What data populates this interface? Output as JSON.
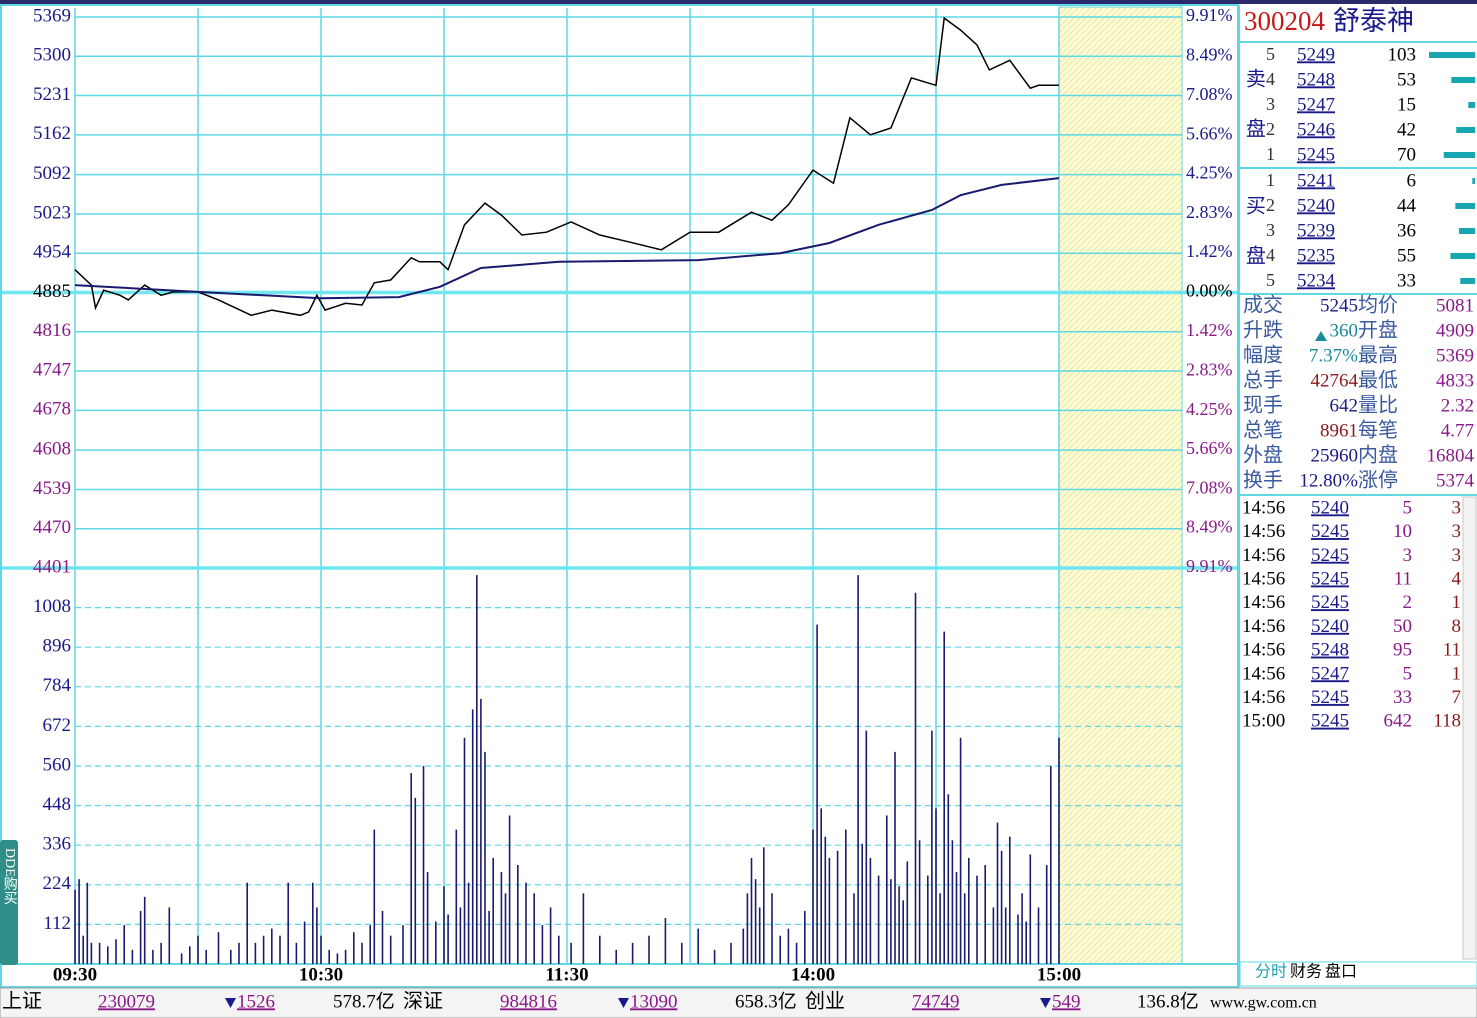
{
  "chart_data": [
    {
      "type": "line",
      "series": [
        {
          "color": "#000000",
          "x": [
            0,
            4,
            5,
            7,
            11,
            13,
            17,
            21,
            24,
            30,
            35,
            43,
            48,
            55,
            57,
            59,
            61,
            66,
            70,
            73,
            77,
            82,
            84,
            89,
            91,
            95,
            100,
            104,
            109,
            115,
            121,
            128,
            135,
            143,
            150,
            157,
            165,
            170,
            174,
            180,
            185,
            189,
            194,
            199,
            204,
            210,
            212,
            216,
            220,
            223,
            228,
            233,
            235,
            240
          ],
          "values": [
            4925,
            4898,
            4858,
            4889,
            4880,
            4872,
            4898,
            4880,
            4886,
            4886,
            4872,
            4845,
            4854,
            4845,
            4851,
            4880,
            4854,
            4866,
            4863,
            4902,
            4907,
            4946,
            4939,
            4939,
            4925,
            5004,
            5042,
            5021,
            4986,
            4991,
            5009,
            4986,
            4974,
            4960,
            4991,
            4991,
            5026,
            5012,
            5039,
            5100,
            5077,
            5192,
            5162,
            5174,
            5262,
            5249,
            5367,
            5346,
            5320,
            5276,
            5293,
            5244,
            5249,
            5249
          ]
        },
        {
          "color": "#1a1a6e",
          "x": [
            0,
            30,
            60,
            79,
            89,
            99,
            118,
            152,
            172,
            184,
            196,
            209,
            216,
            226,
            240
          ],
          "values": [
            4898,
            4886,
            4875,
            4877,
            4895,
            4928,
            4939,
            4942,
            4954,
            4972,
            5004,
            5030,
            5056,
            5074,
            5086
          ]
        }
      ],
      "ylim": [
        4401,
        5369
      ],
      "yticks": [
        5369,
        5300,
        5231,
        5162,
        5092,
        5023,
        4954,
        4885,
        4816,
        4747,
        4678,
        4608,
        4539,
        4470,
        4401
      ],
      "y2lim": [
        -9.91,
        9.91
      ],
      "y2ticks": [
        {
          "value": 9.91,
          "label": "9.91%"
        },
        {
          "value": 8.49,
          "label": "8.49%"
        },
        {
          "value": 7.08,
          "label": "7.08%"
        },
        {
          "value": 5.66,
          "label": "5.66%"
        },
        {
          "value": 4.25,
          "label": "4.25%"
        },
        {
          "value": 2.83,
          "label": "2.83%"
        },
        {
          "value": 1.42,
          "label": "1.42%"
        },
        {
          "value": 0,
          "label": "0.00%"
        },
        {
          "value": -1.42,
          "label": "1.42%"
        },
        {
          "value": -2.83,
          "label": "2.83%"
        },
        {
          "value": -4.25,
          "label": "4.25%"
        },
        {
          "value": -5.66,
          "label": "5.66%"
        },
        {
          "value": -7.08,
          "label": "7.08%"
        },
        {
          "value": -8.49,
          "label": "8.49%"
        },
        {
          "value": -9.91,
          "label": "9.91%"
        }
      ],
      "grid": true
    },
    {
      "type": "bar",
      "color": "#1a1a6e",
      "x": [
        0,
        1,
        2,
        3,
        4,
        6,
        8,
        10,
        12,
        14,
        16,
        17,
        19,
        21,
        23,
        26,
        28,
        30,
        32,
        35,
        38,
        40,
        42,
        44,
        46,
        48,
        50,
        52,
        54,
        56,
        58,
        59,
        60,
        62,
        64,
        66,
        68,
        70,
        72,
        73,
        75,
        77,
        80,
        82,
        83,
        85,
        86,
        88,
        90,
        91,
        93,
        94,
        95,
        96,
        97,
        98,
        99,
        100,
        101,
        102,
        104,
        105,
        106,
        108,
        110,
        112,
        114,
        116,
        118,
        121,
        124,
        128,
        132,
        136,
        140,
        144,
        148,
        152,
        156,
        160,
        163,
        164,
        165,
        166,
        167,
        168,
        170,
        172,
        174,
        176,
        178,
        180,
        181,
        182,
        183,
        184,
        186,
        188,
        190,
        191,
        192,
        193,
        194,
        196,
        198,
        199,
        200,
        201,
        202,
        203,
        205,
        206,
        208,
        209,
        210,
        211,
        212,
        213,
        214,
        215,
        216,
        217,
        218,
        220,
        222,
        224,
        225,
        226,
        227,
        228,
        230,
        231,
        232,
        233,
        235,
        237,
        238,
        240
      ],
      "values": [
        210,
        240,
        80,
        230,
        60,
        60,
        50,
        70,
        110,
        40,
        150,
        190,
        40,
        60,
        160,
        30,
        50,
        80,
        40,
        90,
        40,
        60,
        230,
        60,
        80,
        100,
        80,
        230,
        60,
        120,
        230,
        160,
        80,
        40,
        30,
        40,
        90,
        60,
        110,
        380,
        150,
        80,
        110,
        540,
        470,
        560,
        260,
        120,
        220,
        140,
        380,
        160,
        640,
        230,
        720,
        1100,
        750,
        600,
        150,
        300,
        260,
        200,
        420,
        280,
        230,
        200,
        110,
        160,
        80,
        60,
        200,
        80,
        40,
        60,
        80,
        130,
        60,
        100,
        40,
        60,
        100,
        200,
        300,
        240,
        160,
        330,
        200,
        80,
        100,
        60,
        150,
        380,
        960,
        440,
        360,
        300,
        320,
        380,
        200,
        1100,
        340,
        660,
        300,
        250,
        420,
        240,
        600,
        220,
        180,
        290,
        1050,
        350,
        250,
        660,
        440,
        200,
        940,
        480,
        350,
        260,
        640,
        200,
        300,
        250,
        280,
        160,
        400,
        320,
        160,
        360,
        140,
        200,
        120,
        310,
        160,
        280,
        560,
        640
      ],
      "xlim": [
        0,
        270
      ],
      "xticks": [
        {
          "value": 0,
          "label": "09:30"
        },
        {
          "value": 30,
          "label": null
        },
        {
          "value": 60,
          "label": "10:30"
        },
        {
          "value": 90,
          "label": null
        },
        {
          "value": 120,
          "label": "11:30"
        },
        {
          "value": 150,
          "label": null
        },
        {
          "value": 180,
          "label": "14:00"
        },
        {
          "value": 210,
          "label": null
        },
        {
          "value": 240,
          "label": "15:00"
        }
      ],
      "ylim": [
        0,
        1120
      ],
      "yticks": [
        1008,
        896,
        784,
        672,
        560,
        448,
        336,
        224,
        112
      ],
      "grid": true
    }
  ],
  "quote": {
    "code": "300204",
    "name": "舒泰神"
  },
  "order_book": {
    "sell_label": "卖盘",
    "buy_label": "买盘",
    "sell": [
      {
        "level": 5,
        "price": 5249,
        "volume": 103
      },
      {
        "level": 4,
        "price": 5248,
        "volume": 53
      },
      {
        "level": 3,
        "price": 5247,
        "volume": 15
      },
      {
        "level": 2,
        "price": 5246,
        "volume": 42
      },
      {
        "level": 1,
        "price": 5245,
        "volume": 70
      }
    ],
    "buy": [
      {
        "level": 1,
        "price": 5241,
        "volume": 6
      },
      {
        "level": 2,
        "price": 5240,
        "volume": 44
      },
      {
        "level": 3,
        "price": 5239,
        "volume": 36
      },
      {
        "level": 4,
        "price": 5235,
        "volume": 55
      },
      {
        "level": 5,
        "price": 5234,
        "volume": 33
      }
    ]
  },
  "stats": [
    [
      "成交",
      5245,
      "均价",
      5081
    ],
    [
      "升跌",
      360,
      "开盘",
      4909
    ],
    [
      "幅度",
      "7.37%",
      "最高",
      5369
    ],
    [
      "总手",
      42764,
      "最低",
      4833
    ],
    [
      "现手",
      642,
      "量比",
      2.32
    ],
    [
      "总笔",
      8961,
      "每笔",
      4.77
    ],
    [
      "外盘",
      25960,
      "内盘",
      16804
    ],
    [
      "换手",
      "12.80%",
      "涨停",
      5374
    ]
  ],
  "trades": [
    [
      "14:56",
      5240,
      5,
      3
    ],
    [
      "14:56",
      5245,
      10,
      3
    ],
    [
      "14:56",
      5245,
      3,
      3
    ],
    [
      "14:56",
      5245,
      11,
      4
    ],
    [
      "14:56",
      5245,
      2,
      1
    ],
    [
      "14:56",
      5240,
      50,
      8
    ],
    [
      "14:56",
      5248,
      95,
      11
    ],
    [
      "14:56",
      5247,
      5,
      1
    ],
    [
      "14:56",
      5245,
      33,
      7
    ],
    [
      "15:00",
      5245,
      642,
      118
    ]
  ],
  "tabs": [
    "分时",
    "财务",
    "盘口"
  ],
  "side_tab": "DDE购买",
  "status_bar": {
    "items": [
      {
        "name": "上证",
        "value": 230079,
        "change": 1526,
        "amount": "578.7亿"
      },
      {
        "name": "深证",
        "value": 984816,
        "change": 13090,
        "amount": "658.3亿"
      },
      {
        "name": "创业",
        "value": 74749,
        "change": 549,
        "amount": "136.8亿"
      }
    ],
    "url": "www.gw.com.cn"
  }
}
